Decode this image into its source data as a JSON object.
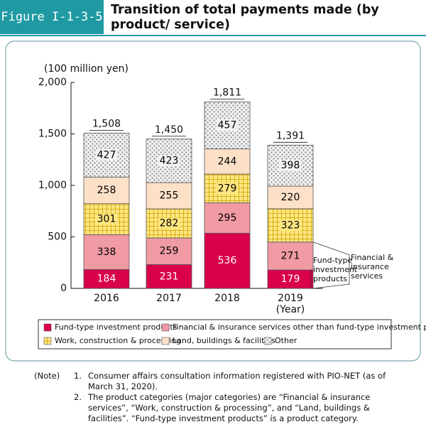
{
  "header": {
    "figure": "Figure I-1-3-5",
    "title": "Transition of total payments made (by product/ service)"
  },
  "chart_data": {
    "type": "stacked-bar",
    "y_label": "(100 million yen)",
    "x_label": "(Year)",
    "categories": [
      "2016",
      "2017",
      "2018",
      "2019"
    ],
    "ylim": [
      0,
      2000
    ],
    "yticks": [
      0,
      500,
      {
        "value": 1000,
        "label": "1,000"
      },
      {
        "value": 1500,
        "label": "1,500"
      },
      {
        "value": 2000,
        "label": "2,000"
      }
    ],
    "series": [
      {
        "name": "Fund-type investment products",
        "color": "#d9004c",
        "pattern": "none",
        "label_color": "#ffffff",
        "values": [
          184,
          231,
          536,
          179
        ]
      },
      {
        "name": "Financial & insurance services other than fund-type investment products",
        "color": "#f09aa3",
        "pattern": "none",
        "label_color": "#000000",
        "values": [
          338,
          259,
          295,
          271
        ]
      },
      {
        "name": "Work, construction & processing",
        "color": "#ffe680",
        "pattern": "grid",
        "label_color": "#000000",
        "values": [
          301,
          282,
          279,
          323
        ]
      },
      {
        "name": "Land, buildings & facilities",
        "color": "#fde0c8",
        "pattern": "none",
        "label_color": "#000000",
        "values": [
          258,
          255,
          244,
          220
        ]
      },
      {
        "name": "Other",
        "color": "#c8c8c8",
        "pattern": "dots",
        "label_color": "#000000",
        "values": [
          427,
          423,
          457,
          398
        ]
      }
    ],
    "totals": [
      1508,
      1450,
      1811,
      1391
    ],
    "total_labels": [
      "1,508",
      "1,450",
      "1,811",
      "1,391"
    ],
    "annotations": [
      {
        "lines": [
          "Fund-type",
          "investment",
          "products"
        ]
      },
      {
        "lines": [
          "Financial &",
          "insurance",
          "services"
        ]
      }
    ]
  },
  "notes": {
    "label": "(Note)",
    "items": [
      {
        "num": "1.",
        "text": "Consumer affairs consultation information registered with PIO-NET (as of March 31, 2020)."
      },
      {
        "num": "2.",
        "text": "The product categories (major categories) are “Financial & insurance services”, “Work, construction & processing”, and “Land, buildings & facilities”. “Fund-type investment products” is a product category."
      }
    ]
  }
}
